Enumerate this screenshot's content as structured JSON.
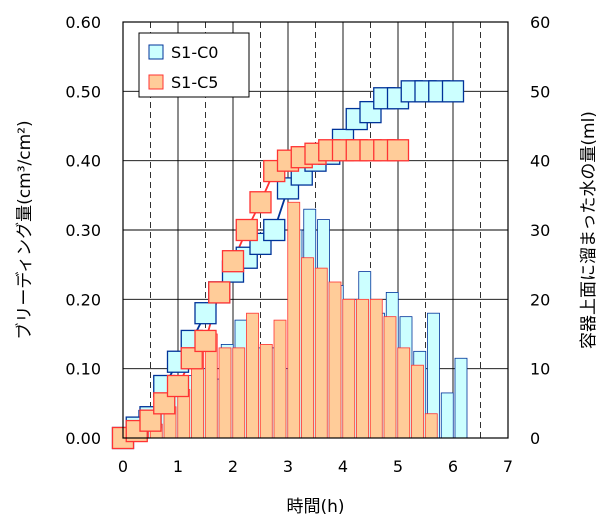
{
  "chart_data": {
    "type": "bar",
    "xlabel": "時間(h)",
    "ylabel_left": "ブリーディング量(cm³/cm²)",
    "ylabel_right": "容器上面に溜まった水の量(ml)",
    "xlim": [
      0,
      7
    ],
    "ylim_left": [
      0,
      0.6
    ],
    "ylim_right": [
      0,
      60
    ],
    "x_ticks": [
      "0",
      "1",
      "2",
      "3",
      "4",
      "5",
      "6",
      "7"
    ],
    "y_left_ticks": [
      "0.00",
      "0.10",
      "0.20",
      "0.30",
      "0.40",
      "0.50",
      "0.60"
    ],
    "y_right_ticks": [
      "0",
      "10",
      "20",
      "30",
      "40",
      "50",
      "60"
    ],
    "grid": true,
    "legend_position": "top-left",
    "series": [
      {
        "name": "S1-C0",
        "kind": "bar+line",
        "fill_color": "#ccffff",
        "edge_color": "#003399",
        "bars": {
          "x": [
            0.25,
            0.5,
            0.75,
            1.0,
            1.25,
            1.5,
            1.75,
            2.0,
            2.25,
            2.5,
            2.75,
            3.0,
            3.25,
            3.5,
            3.75,
            4.0,
            4.25,
            4.5,
            4.75,
            5.0,
            5.25,
            5.5,
            5.75,
            6.0
          ],
          "values": [
            4.0,
            4.0,
            7.0,
            9.0,
            10.0,
            8.5,
            13.5,
            17.0,
            13.0,
            13.0,
            10.0,
            30.0,
            33.0,
            31.5,
            22.0,
            20.0,
            24.0,
            18.0,
            21.0,
            17.5,
            12.5,
            18.0,
            6.5,
            11.5
          ]
        },
        "line": {
          "x": [
            0,
            0.25,
            0.5,
            0.75,
            1.0,
            1.25,
            1.5,
            1.75,
            2.0,
            2.25,
            2.5,
            2.75,
            3.0,
            3.25,
            3.5,
            3.75,
            4.0,
            4.25,
            4.5,
            4.75,
            5.0,
            5.25,
            5.5,
            5.75,
            6.0
          ],
          "values": [
            0.0,
            0.015,
            0.03,
            0.075,
            0.11,
            0.14,
            0.18,
            0.21,
            0.24,
            0.26,
            0.28,
            0.3,
            0.36,
            0.38,
            0.4,
            0.41,
            0.43,
            0.46,
            0.47,
            0.49,
            0.49,
            0.5,
            0.5,
            0.5,
            0.5
          ]
        }
      },
      {
        "name": "S1-C5",
        "kind": "bar+line",
        "fill_color": "#ffcc99",
        "edge_color": "#ff3333",
        "bars": {
          "x": [
            0.25,
            0.5,
            0.75,
            1.0,
            1.25,
            1.5,
            1.75,
            2.0,
            2.25,
            2.5,
            2.75,
            3.0,
            3.25,
            3.5,
            3.75,
            4.0,
            4.25,
            4.5,
            4.75,
            5.0,
            5.25,
            5.5,
            5.75
          ],
          "values": [
            0.5,
            2.5,
            2.0,
            4.5,
            7.0,
            13.5,
            15.0,
            13.0,
            13.0,
            18.0,
            13.5,
            17.0,
            34.0,
            26.0,
            24.5,
            22.5,
            20.0,
            20.0,
            20.0,
            17.5,
            13.0,
            10.5,
            3.5
          ]
        },
        "line": {
          "x": [
            0,
            0.25,
            0.5,
            0.75,
            1.0,
            1.25,
            1.5,
            1.75,
            2.0,
            2.25,
            2.5,
            2.75,
            3.0,
            3.25,
            3.5,
            3.75,
            4.0,
            4.25,
            4.5,
            4.75,
            5.0
          ],
          "values": [
            0.0,
            0.01,
            0.025,
            0.05,
            0.075,
            0.115,
            0.14,
            0.21,
            0.255,
            0.3,
            0.34,
            0.385,
            0.4,
            0.405,
            0.41,
            0.415,
            0.415,
            0.415,
            0.415,
            0.415,
            0.415
          ]
        }
      }
    ]
  }
}
